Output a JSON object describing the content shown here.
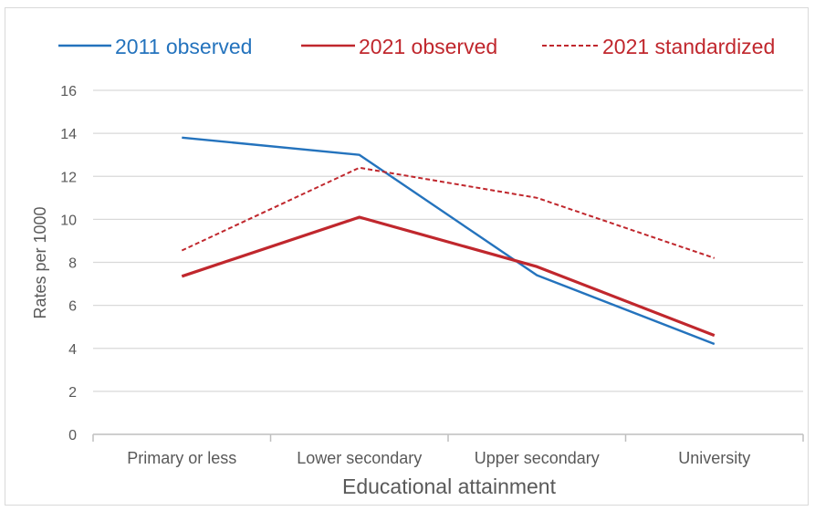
{
  "chart_data": {
    "type": "line",
    "title": "",
    "xlabel": "Educational attainment",
    "ylabel": "Rates per 1000",
    "categories": [
      "Primary or less",
      "Lower secondary",
      "Upper secondary",
      "University"
    ],
    "ylim": [
      0,
      16
    ],
    "yticks": [
      0,
      2,
      4,
      6,
      8,
      10,
      12,
      14,
      16
    ],
    "grid": true,
    "legend_position": "top",
    "series": [
      {
        "name": "2011 observed",
        "values": [
          13.8,
          13.0,
          7.4,
          4.2
        ],
        "color": "#2473bd",
        "style": "solid"
      },
      {
        "name": "2021 observed",
        "values": [
          7.35,
          10.1,
          7.8,
          4.6
        ],
        "color": "#c0272d",
        "style": "solid"
      },
      {
        "name": "2021 standardized",
        "values": [
          8.55,
          12.4,
          11.0,
          8.2
        ],
        "color": "#c0272d",
        "style": "dashed"
      }
    ]
  }
}
